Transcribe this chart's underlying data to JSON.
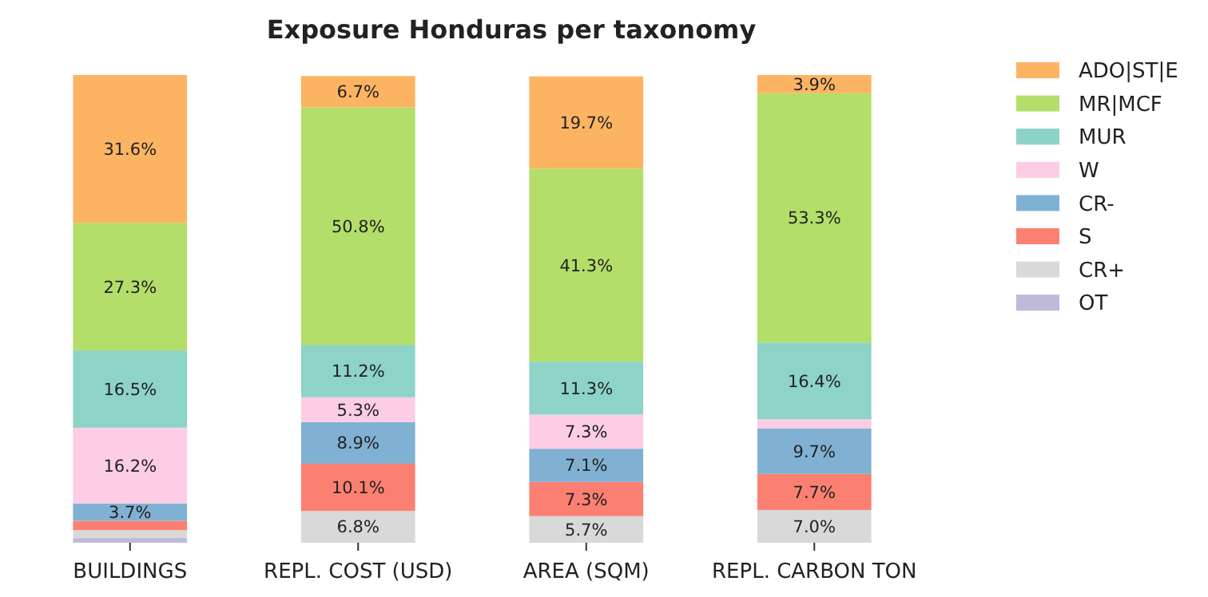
{
  "chart_data": {
    "type": "bar",
    "title": "Exposure Honduras per taxonomy",
    "stacked": true,
    "legend": "right",
    "ylim": [
      0,
      100
    ],
    "categories": [
      "BUILDINGS",
      "REPL. COST (USD)",
      "AREA (SQM)",
      "REPL. CARBON TON"
    ],
    "series": [
      {
        "name": "OT",
        "color": "#bebada",
        "values": [
          1.0,
          null,
          null,
          null
        ],
        "value_labels": [
          null,
          null,
          null,
          null
        ]
      },
      {
        "name": "CR+",
        "color": "#d9d9d9",
        "values": [
          1.7,
          6.8,
          5.7,
          7.0
        ],
        "value_labels": [
          null,
          "6.8%",
          "5.7%",
          "7.0%"
        ]
      },
      {
        "name": "S",
        "color": "#fb8072",
        "values": [
          2.0,
          10.1,
          7.3,
          7.7
        ],
        "value_labels": [
          null,
          "10.1%",
          "7.3%",
          "7.7%"
        ]
      },
      {
        "name": "CR-",
        "color": "#80b1d3",
        "values": [
          3.7,
          8.9,
          7.1,
          9.7
        ],
        "value_labels": [
          "3.7%",
          "8.9%",
          "7.1%",
          "9.7%"
        ]
      },
      {
        "name": "W",
        "color": "#fccde5",
        "values": [
          16.2,
          5.3,
          7.3,
          2.0
        ],
        "value_labels": [
          "16.2%",
          "5.3%",
          "7.3%",
          null
        ]
      },
      {
        "name": "MUR",
        "color": "#8dd3c7",
        "values": [
          16.5,
          11.2,
          11.3,
          16.4
        ],
        "value_labels": [
          "16.5%",
          "11.2%",
          "11.3%",
          "16.4%"
        ]
      },
      {
        "name": "MR|MCF",
        "color": "#b3de69",
        "values": [
          27.3,
          50.8,
          41.3,
          53.3
        ],
        "value_labels": [
          "27.3%",
          "50.8%",
          "41.3%",
          "53.3%"
        ]
      },
      {
        "name": "ADO|ST|E",
        "color": "#fdb462",
        "values": [
          31.6,
          6.7,
          19.7,
          3.9
        ],
        "value_labels": [
          "31.6%",
          "6.7%",
          "19.7%",
          "3.9%"
        ]
      }
    ]
  }
}
